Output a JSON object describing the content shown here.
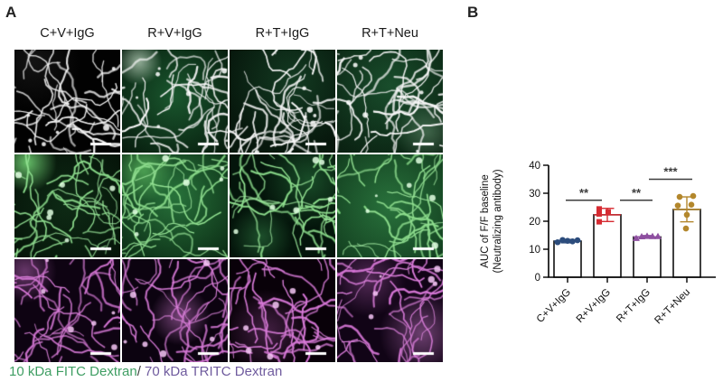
{
  "figure": {
    "panel_a_label": "A",
    "panel_b_label": "B"
  },
  "panel_a": {
    "column_headers": [
      "C+V+IgG",
      "R+V+IgG",
      "R+T+IgG",
      "R+T+Neu"
    ],
    "caption": {
      "fitc_text": "10 kDa FITC Dextran",
      "slash": "/",
      "tritc_text": " 70 kDa TRITC Dextran"
    },
    "colors": {
      "fitc_caption": "#3f9e63",
      "tritc_caption": "#6f5b9e",
      "merge_vessel": "#f3f3f3",
      "merge_vessel_core": "#ffffff",
      "fitc_vessel": "#7bd47b",
      "fitc_vessel_core": "#e2ffe2",
      "tritc_vessel": "#cf68cf",
      "tritc_vessel_core": "#f6c6f6",
      "scale_bar": "#ffffff"
    }
  },
  "chart_data": {
    "type": "bar",
    "title": "",
    "ylabel_line1": "AUC of F/F baseline",
    "ylabel_line2": "(Neutralizing antibody)",
    "xlabel": "",
    "ylim": [
      0,
      40
    ],
    "yticks": [
      0,
      10,
      20,
      30,
      40
    ],
    "grid": false,
    "legend": false,
    "categories": [
      "C+V+IgG",
      "R+V+IgG",
      "R+T+IgG",
      "R+T+Neu"
    ],
    "bar_fill": "#ffffff",
    "bar_stroke": "#000000",
    "bar_means": [
      12.9,
      22.3,
      14.4,
      24.2
    ],
    "error_low": [
      12.3,
      19.9,
      13.9,
      19.8
    ],
    "error_high": [
      13.5,
      24.6,
      14.9,
      28.7
    ],
    "group_colors": [
      "#2c4c7c",
      "#d62b32",
      "#8e4fa0",
      "#b3872c"
    ],
    "group_shapes": [
      "circle",
      "square",
      "triangle",
      "circle"
    ],
    "points": [
      [
        [
          -11,
          12.5
        ],
        [
          -5.5,
          13.3
        ],
        [
          0,
          13.0
        ],
        [
          5.5,
          12.8
        ],
        [
          11,
          13.2
        ]
      ],
      [
        [
          -9,
          24.4
        ],
        [
          1,
          23.3
        ],
        [
          -9,
          22.6
        ],
        [
          -9,
          19.8
        ]
      ],
      [
        [
          -12,
          13.9
        ],
        [
          -6,
          14.5
        ],
        [
          0,
          14.7
        ],
        [
          6,
          14.6
        ],
        [
          12,
          14.6
        ]
      ],
      [
        [
          -8,
          28.7
        ],
        [
          7,
          29.0
        ],
        [
          -10,
          25.6
        ],
        [
          5,
          25.9
        ],
        [
          0,
          22.3
        ],
        [
          -1,
          17.4
        ]
      ]
    ],
    "significance": [
      {
        "between": [
          0,
          1
        ],
        "label": "**",
        "y": 27.5
      },
      {
        "between": [
          1,
          2
        ],
        "label": "**",
        "y": 27.5
      },
      {
        "between": [
          2,
          3
        ],
        "label": "***",
        "y": 35.0
      }
    ]
  }
}
